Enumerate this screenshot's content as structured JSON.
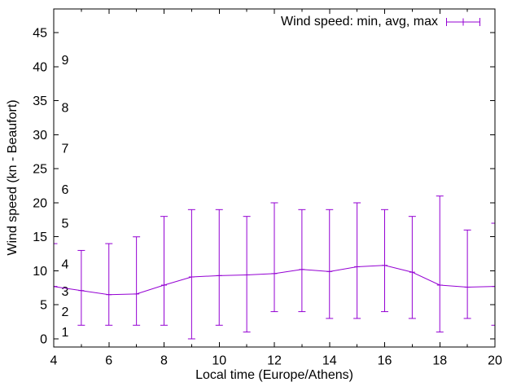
{
  "chart_data": {
    "type": "line",
    "subtype": "errorbars",
    "title": "",
    "legend_label": "Wind speed: min, avg, max",
    "legend_position": "top-right",
    "xlabel": "Local time (Europe/Athens)",
    "ylabel": "Wind speed (kn - Beaufort)",
    "x": [
      4,
      5,
      6,
      7,
      8,
      9,
      10,
      11,
      12,
      13,
      14,
      15,
      16,
      17,
      18,
      19,
      20
    ],
    "series": [
      {
        "name": "avg",
        "values": [
          7.7,
          7.1,
          6.5,
          6.6,
          7.9,
          9.1,
          9.3,
          9.4,
          9.6,
          10.2,
          9.9,
          10.6,
          10.8,
          9.8,
          7.9,
          7.6,
          7.7
        ]
      },
      {
        "name": "min",
        "values": [
          7.7,
          2,
          2,
          2,
          2,
          0,
          2,
          1,
          4,
          4,
          3,
          3,
          4,
          3,
          1,
          3,
          2
        ]
      },
      {
        "name": "max",
        "values": [
          14,
          13,
          14,
          15,
          18,
          19,
          19,
          18,
          20,
          19,
          19,
          20,
          19,
          18,
          21,
          16,
          17
        ]
      }
    ],
    "xlim": [
      4,
      20
    ],
    "ylim": [
      -1.2,
      48.5
    ],
    "x_major_ticks": [
      4,
      6,
      8,
      10,
      12,
      14,
      16,
      18,
      20
    ],
    "x_minor_ticks": [
      5,
      7,
      9,
      11,
      13,
      15,
      17,
      19
    ],
    "y_major_ticks": [
      0,
      5,
      10,
      15,
      20,
      25,
      30,
      35,
      40,
      45
    ],
    "beaufort_scale": [
      {
        "label": "1",
        "kn": 1
      },
      {
        "label": "2",
        "kn": 4
      },
      {
        "label": "3",
        "kn": 7
      },
      {
        "label": "4",
        "kn": 11
      },
      {
        "label": "5",
        "kn": 17
      },
      {
        "label": "6",
        "kn": 22
      },
      {
        "label": "7",
        "kn": 28
      },
      {
        "label": "8",
        "kn": 34
      },
      {
        "label": "9",
        "kn": 41
      }
    ],
    "grid": false,
    "colors": {
      "series": "#9400d3",
      "axis": "#000000",
      "text": "#000000",
      "background": "#ffffff"
    }
  }
}
